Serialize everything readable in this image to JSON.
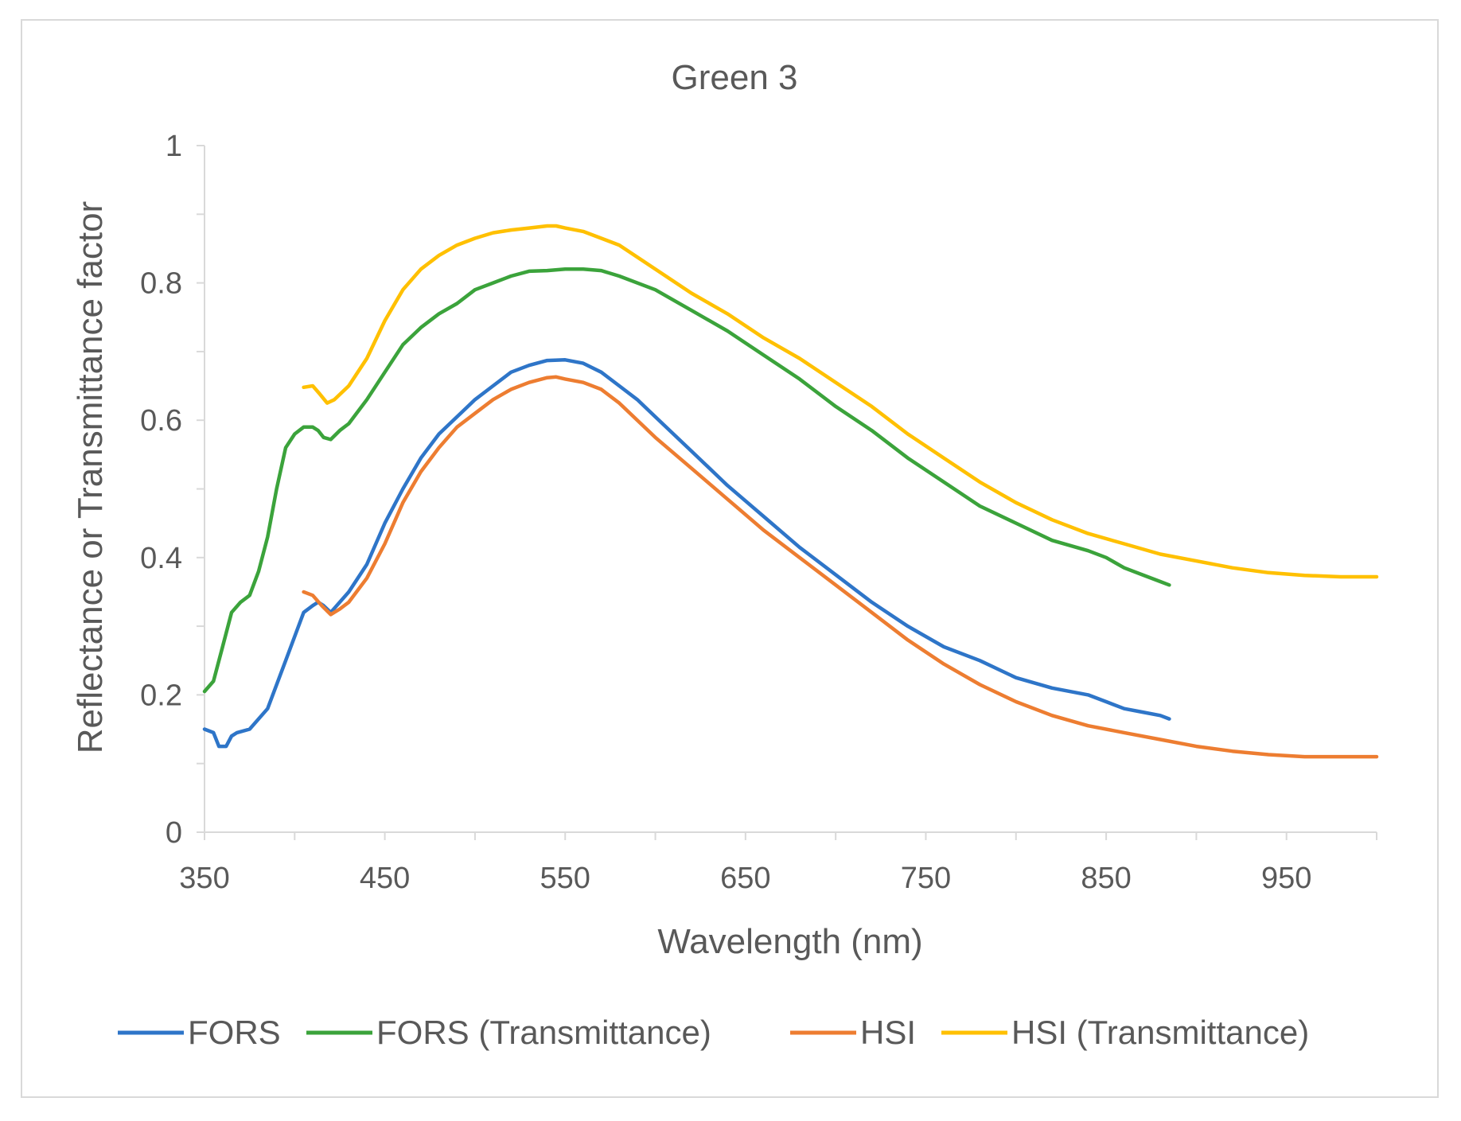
{
  "chart_data": {
    "type": "line",
    "title": "Green 3",
    "xlabel": "Wavelength (nm)",
    "ylabel": "Reflectance or Transmittance factor",
    "xlim": [
      350,
      1000
    ],
    "ylim": [
      0,
      1
    ],
    "xticks": [
      350,
      450,
      550,
      650,
      750,
      850,
      950
    ],
    "xtick_labels": [
      "350",
      "450",
      "550",
      "650",
      "750",
      "850",
      "950"
    ],
    "yticks": [
      0,
      0.2,
      0.4,
      0.6,
      0.8,
      1
    ],
    "ytick_labels": [
      "0",
      "0.2",
      "0.4",
      "0.6",
      "0.8",
      "1"
    ],
    "legend_position": "bottom",
    "series": [
      {
        "name": "FORS",
        "color": "#2e75c8",
        "x": [
          350,
          355,
          358,
          362,
          365,
          368,
          375,
          385,
          395,
          405,
          410,
          413,
          416,
          420,
          430,
          440,
          450,
          460,
          470,
          480,
          490,
          500,
          510,
          520,
          530,
          540,
          550,
          560,
          570,
          580,
          590,
          600,
          620,
          640,
          660,
          680,
          700,
          720,
          740,
          760,
          780,
          800,
          820,
          840,
          850,
          860,
          870,
          880,
          885
        ],
        "y": [
          0.15,
          0.145,
          0.125,
          0.125,
          0.14,
          0.145,
          0.15,
          0.18,
          0.25,
          0.32,
          0.33,
          0.335,
          0.33,
          0.32,
          0.35,
          0.39,
          0.45,
          0.5,
          0.545,
          0.58,
          0.605,
          0.63,
          0.65,
          0.67,
          0.68,
          0.687,
          0.688,
          0.683,
          0.67,
          0.65,
          0.63,
          0.605,
          0.555,
          0.505,
          0.46,
          0.415,
          0.375,
          0.335,
          0.3,
          0.27,
          0.25,
          0.225,
          0.21,
          0.2,
          0.19,
          0.18,
          0.175,
          0.17,
          0.165
        ]
      },
      {
        "name": "FORS (Transmittance)",
        "color": "#3ba33b",
        "x": [
          350,
          355,
          360,
          365,
          370,
          375,
          380,
          385,
          390,
          395,
          400,
          405,
          410,
          413,
          416,
          420,
          425,
          430,
          440,
          450,
          460,
          470,
          480,
          490,
          500,
          510,
          520,
          530,
          540,
          550,
          560,
          570,
          580,
          600,
          620,
          640,
          660,
          680,
          700,
          720,
          740,
          760,
          780,
          800,
          820,
          840,
          850,
          860,
          870,
          880,
          885
        ],
        "y": [
          0.205,
          0.22,
          0.27,
          0.32,
          0.335,
          0.345,
          0.38,
          0.43,
          0.5,
          0.56,
          0.58,
          0.59,
          0.59,
          0.585,
          0.575,
          0.572,
          0.585,
          0.595,
          0.63,
          0.67,
          0.71,
          0.735,
          0.755,
          0.77,
          0.79,
          0.8,
          0.81,
          0.817,
          0.818,
          0.82,
          0.82,
          0.818,
          0.81,
          0.79,
          0.76,
          0.73,
          0.695,
          0.66,
          0.62,
          0.585,
          0.545,
          0.51,
          0.475,
          0.45,
          0.425,
          0.41,
          0.4,
          0.385,
          0.375,
          0.365,
          0.36
        ]
      },
      {
        "name": "HSI",
        "color": "#ed7d31",
        "x": [
          405,
          410,
          415,
          420,
          425,
          430,
          440,
          450,
          460,
          470,
          480,
          490,
          500,
          510,
          520,
          530,
          540,
          545,
          550,
          560,
          570,
          580,
          590,
          600,
          620,
          640,
          660,
          680,
          700,
          720,
          740,
          760,
          780,
          800,
          820,
          840,
          860,
          880,
          900,
          920,
          940,
          960,
          980,
          1000
        ],
        "y": [
          0.35,
          0.345,
          0.33,
          0.317,
          0.325,
          0.335,
          0.37,
          0.42,
          0.48,
          0.525,
          0.56,
          0.59,
          0.61,
          0.63,
          0.645,
          0.655,
          0.662,
          0.663,
          0.66,
          0.655,
          0.645,
          0.625,
          0.6,
          0.575,
          0.53,
          0.485,
          0.44,
          0.4,
          0.36,
          0.32,
          0.28,
          0.245,
          0.215,
          0.19,
          0.17,
          0.155,
          0.145,
          0.135,
          0.125,
          0.118,
          0.113,
          0.11,
          0.11,
          0.11
        ]
      },
      {
        "name": "HSI (Transmittance)",
        "color": "#ffc000",
        "x": [
          405,
          410,
          414,
          418,
          422,
          430,
          440,
          450,
          460,
          470,
          480,
          490,
          500,
          510,
          520,
          530,
          540,
          545,
          550,
          560,
          570,
          580,
          600,
          620,
          640,
          660,
          680,
          700,
          720,
          740,
          760,
          780,
          800,
          820,
          840,
          860,
          880,
          900,
          920,
          940,
          960,
          980,
          1000
        ],
        "y": [
          0.648,
          0.65,
          0.638,
          0.625,
          0.63,
          0.65,
          0.69,
          0.745,
          0.79,
          0.82,
          0.84,
          0.855,
          0.865,
          0.873,
          0.877,
          0.88,
          0.883,
          0.883,
          0.88,
          0.875,
          0.865,
          0.855,
          0.82,
          0.785,
          0.755,
          0.72,
          0.69,
          0.655,
          0.62,
          0.58,
          0.545,
          0.51,
          0.48,
          0.455,
          0.435,
          0.42,
          0.405,
          0.395,
          0.385,
          0.378,
          0.374,
          0.372,
          0.372
        ]
      }
    ]
  }
}
